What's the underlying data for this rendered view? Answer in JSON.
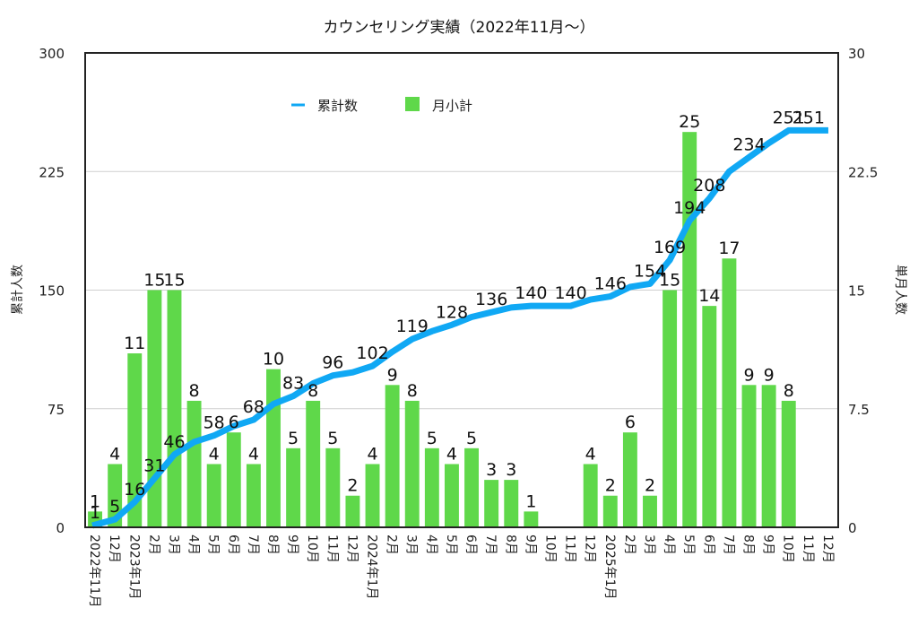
{
  "chart_data": {
    "type": "bar",
    "title": "カウンセリング実績（2022年11月〜）",
    "ylabel_left": "累計人数",
    "ylabel_right": "単月人数",
    "ylim_left": [
      0,
      300
    ],
    "ylim_right": [
      0,
      30
    ],
    "yticks_left": [
      "0",
      "75",
      "150",
      "225",
      "300"
    ],
    "yticks_right": [
      "0",
      "7.5",
      "15",
      "22.5",
      "30"
    ],
    "grid": true,
    "legend": {
      "placement": "top-center",
      "entries": [
        {
          "name": "累計数",
          "type": "line",
          "color": "#10a8f4"
        },
        {
          "name": "月小計",
          "type": "bar",
          "color": "#5fd84a"
        }
      ]
    },
    "categories": [
      "2022年11月",
      "12月",
      "2023年1月",
      "2月",
      "3月",
      "4月",
      "5月",
      "6月",
      "7月",
      "8月",
      "9月",
      "10月",
      "11月",
      "12月",
      "2024年1月",
      "2月",
      "3月",
      "4月",
      "5月",
      "6月",
      "7月",
      "8月",
      "9月",
      "10月",
      "11月",
      "12月",
      "2025年1月",
      "2月",
      "3月",
      "4月",
      "5月",
      "6月",
      "7月",
      "8月",
      "9月",
      "10月",
      "11月",
      "12月"
    ],
    "series": [
      {
        "name": "月小計",
        "type": "bar",
        "axis": "right",
        "color": "#5fd84a",
        "values": [
          1,
          4,
          11,
          15,
          15,
          8,
          4,
          6,
          4,
          10,
          5,
          8,
          5,
          2,
          4,
          9,
          8,
          5,
          4,
          5,
          3,
          3,
          1,
          0,
          0,
          4,
          2,
          6,
          2,
          15,
          25,
          14,
          17,
          9,
          9,
          8,
          0,
          0
        ],
        "labels": [
          "1",
          "4",
          "11",
          "15",
          "15",
          "8",
          "4",
          "6",
          "4",
          "10",
          "5",
          "8",
          "5",
          "2",
          "4",
          "9",
          "8",
          "5",
          "4",
          "5",
          "3",
          "3",
          "1",
          "",
          "",
          "4",
          "2",
          "6",
          "2",
          "15",
          "25",
          "14",
          "17",
          "9",
          "9",
          "8",
          "",
          ""
        ]
      },
      {
        "name": "累計数",
        "type": "line",
        "axis": "left",
        "color": "#10a8f4",
        "values": [
          1,
          5,
          16,
          31,
          46,
          54,
          58,
          64,
          68,
          78,
          83,
          91,
          96,
          98,
          102,
          111,
          119,
          124,
          128,
          133,
          136,
          139,
          140,
          140,
          140,
          144,
          146,
          152,
          154,
          169,
          194,
          208,
          225,
          234,
          243,
          251,
          251,
          251
        ],
        "labels": [
          "1",
          "5",
          "16",
          "31",
          "46",
          "",
          "58",
          "",
          "68",
          "",
          "83",
          "",
          "96",
          "",
          "102",
          "",
          "119",
          "",
          "128",
          "",
          "136",
          "",
          "140",
          "",
          "140",
          "",
          "146",
          "",
          "154",
          "169",
          "194",
          "208",
          "",
          "234",
          "",
          "251",
          "251",
          ""
        ]
      }
    ]
  }
}
